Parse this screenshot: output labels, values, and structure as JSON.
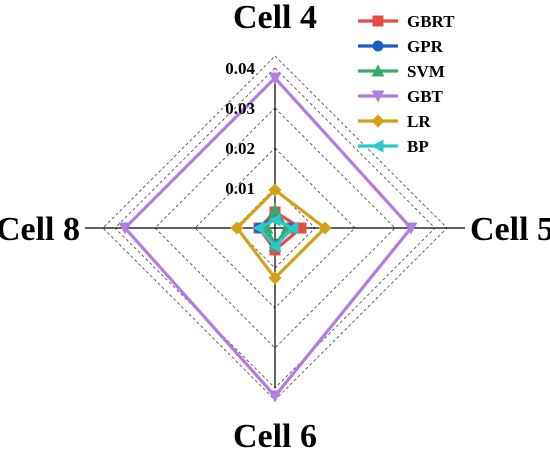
{
  "chart_data": {
    "type": "radar",
    "axes": [
      "Cell 4",
      "Cell 5",
      "Cell 6",
      "Cell 8"
    ],
    "radial_ticks": [
      "0.01",
      "0.02",
      "0.03",
      "0.04"
    ],
    "tick_values": [
      0.01,
      0.02,
      0.03,
      0.04
    ],
    "rmax": 0.043,
    "grid": "dashed",
    "legend_position": "top-right",
    "series": [
      {
        "name": "GBRT",
        "color": "#e84a4a",
        "marker": "square",
        "values": [
          0.004,
          0.0065,
          0.0055,
          0.004
        ]
      },
      {
        "name": "GPR",
        "color": "#1a5fc4",
        "marker": "circle",
        "values": [
          0.003,
          0.0035,
          0.004,
          0.004
        ]
      },
      {
        "name": "SVM",
        "color": "#3aaa6a",
        "marker": "triangle-up",
        "values": [
          0.0045,
          0.003,
          0.0045,
          0.002
        ]
      },
      {
        "name": "GBT",
        "color": "#b07ee0",
        "marker": "triangle-down",
        "values": [
          0.0375,
          0.034,
          0.042,
          0.0375
        ]
      },
      {
        "name": "LR",
        "color": "#d4a017",
        "marker": "diamond",
        "values": [
          0.0095,
          0.0125,
          0.0125,
          0.0095
        ]
      },
      {
        "name": "BP",
        "color": "#2cc7c7",
        "marker": "triangle-left",
        "values": [
          0.002,
          0.0045,
          0.0045,
          0.004
        ]
      }
    ]
  }
}
